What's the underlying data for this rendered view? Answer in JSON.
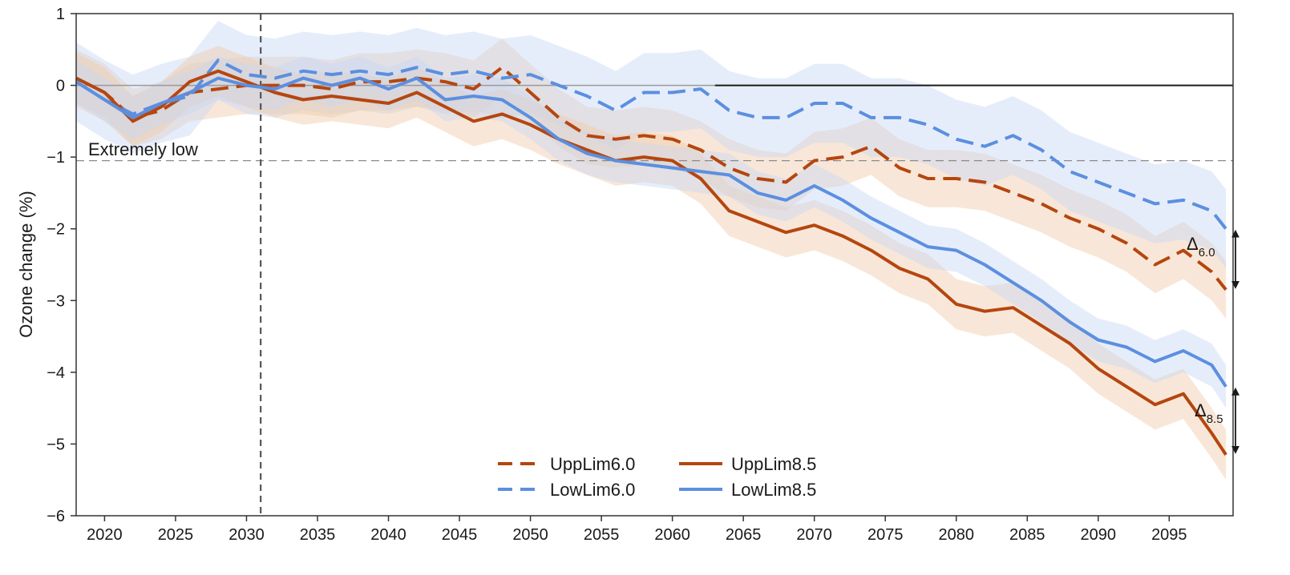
{
  "chart_data": {
    "type": "line",
    "title": "",
    "xlabel": "",
    "ylabel": "Ozone change (%)",
    "xlim": [
      2018,
      2099.5
    ],
    "ylim": [
      -6,
      1
    ],
    "xticks": [
      2020,
      2025,
      2030,
      2035,
      2040,
      2045,
      2050,
      2055,
      2060,
      2065,
      2070,
      2075,
      2080,
      2085,
      2090,
      2095
    ],
    "yticks": [
      1,
      0,
      -1,
      -2,
      -3,
      -4,
      -5,
      -6
    ],
    "xtick_labels": [
      "2020",
      "2025",
      "2030",
      "2035",
      "2040",
      "2045",
      "2050",
      "2055",
      "2060",
      "2065",
      "2070",
      "2075",
      "2080",
      "2085",
      "2090",
      "2095"
    ],
    "ytick_labels": [
      "1",
      "0",
      "−1",
      "−2",
      "−3",
      "−4",
      "−5",
      "−6"
    ],
    "reference_lines": {
      "vertical_x": 2031,
      "extremely_low_y": -1.05,
      "zero_y": 0
    },
    "annotations": {
      "extremely_low": "Extremely low",
      "delta_60_base": "Δ",
      "delta_60_sub": "6.0",
      "delta_85_base": "Δ",
      "delta_85_sub": "8.5"
    },
    "legend_position": "bottom-center",
    "series": [
      {
        "name": "UppLim6.0",
        "color": "#b5460f",
        "band_color": "#f0c9a8",
        "style": "dashed",
        "x": [
          2018,
          2020,
          2022,
          2024,
          2026,
          2028,
          2030,
          2032,
          2034,
          2036,
          2038,
          2040,
          2042,
          2044,
          2046,
          2048,
          2050,
          2052,
          2054,
          2056,
          2058,
          2060,
          2062,
          2064,
          2066,
          2068,
          2070,
          2072,
          2074,
          2076,
          2078,
          2080,
          2082,
          2084,
          2086,
          2088,
          2090,
          2092,
          2094,
          2096,
          2098,
          2099
        ],
        "values": [
          0.1,
          -0.1,
          -0.45,
          -0.35,
          -0.1,
          -0.05,
          0.0,
          0.0,
          0.0,
          -0.05,
          0.05,
          0.05,
          0.1,
          0.05,
          -0.05,
          0.25,
          -0.1,
          -0.45,
          -0.7,
          -0.75,
          -0.7,
          -0.75,
          -0.9,
          -1.15,
          -1.3,
          -1.35,
          -1.05,
          -1.0,
          -0.85,
          -1.15,
          -1.3,
          -1.3,
          -1.35,
          -1.5,
          -1.65,
          -1.85,
          -2.0,
          -2.2,
          -2.5,
          -2.3,
          -2.6,
          -2.85
        ],
        "band_half_width": 0.4
      },
      {
        "name": "LowLim6.0",
        "color": "#5b8fe0",
        "band_color": "#c8d8f5",
        "style": "dashed",
        "x": [
          2018,
          2020,
          2022,
          2024,
          2026,
          2028,
          2030,
          2032,
          2034,
          2036,
          2038,
          2040,
          2042,
          2044,
          2046,
          2048,
          2050,
          2052,
          2054,
          2056,
          2058,
          2060,
          2062,
          2064,
          2066,
          2068,
          2070,
          2072,
          2074,
          2076,
          2078,
          2080,
          2082,
          2084,
          2086,
          2088,
          2090,
          2092,
          2094,
          2096,
          2098,
          2099
        ],
        "values": [
          0.05,
          -0.2,
          -0.4,
          -0.25,
          -0.15,
          0.35,
          0.15,
          0.1,
          0.2,
          0.15,
          0.2,
          0.15,
          0.25,
          0.15,
          0.2,
          0.1,
          0.15,
          0.0,
          -0.15,
          -0.35,
          -0.1,
          -0.1,
          -0.05,
          -0.35,
          -0.45,
          -0.45,
          -0.25,
          -0.25,
          -0.45,
          -0.45,
          -0.55,
          -0.75,
          -0.85,
          -0.7,
          -0.9,
          -1.2,
          -1.35,
          -1.5,
          -1.65,
          -1.6,
          -1.75,
          -2.0
        ],
        "band_half_width": 0.55
      },
      {
        "name": "UppLim8.5",
        "color": "#b5460f",
        "band_color": "#f0c9a8",
        "style": "solid",
        "x": [
          2018,
          2020,
          2022,
          2024,
          2026,
          2028,
          2030,
          2032,
          2034,
          2036,
          2038,
          2040,
          2042,
          2044,
          2046,
          2048,
          2050,
          2052,
          2054,
          2056,
          2058,
          2060,
          2062,
          2064,
          2066,
          2068,
          2070,
          2072,
          2074,
          2076,
          2078,
          2080,
          2082,
          2084,
          2086,
          2088,
          2090,
          2092,
          2094,
          2096,
          2098,
          2099
        ],
        "values": [
          0.1,
          -0.1,
          -0.5,
          -0.3,
          0.05,
          0.2,
          0.05,
          -0.1,
          -0.2,
          -0.15,
          -0.2,
          -0.25,
          -0.1,
          -0.3,
          -0.5,
          -0.4,
          -0.55,
          -0.75,
          -0.9,
          -1.05,
          -1.0,
          -1.05,
          -1.3,
          -1.75,
          -1.9,
          -2.05,
          -1.95,
          -2.1,
          -2.3,
          -2.55,
          -2.7,
          -3.05,
          -3.15,
          -3.1,
          -3.35,
          -3.6,
          -3.95,
          -4.2,
          -4.45,
          -4.3,
          -4.85,
          -5.15
        ],
        "band_half_width": 0.35
      },
      {
        "name": "LowLim8.5",
        "color": "#5b8fe0",
        "band_color": "#c8d8f5",
        "style": "solid",
        "x": [
          2018,
          2020,
          2022,
          2024,
          2026,
          2028,
          2030,
          2032,
          2034,
          2036,
          2038,
          2040,
          2042,
          2044,
          2046,
          2048,
          2050,
          2052,
          2054,
          2056,
          2058,
          2060,
          2062,
          2064,
          2066,
          2068,
          2070,
          2072,
          2074,
          2076,
          2078,
          2080,
          2082,
          2084,
          2086,
          2088,
          2090,
          2092,
          2094,
          2096,
          2098,
          2099
        ],
        "values": [
          0.05,
          -0.2,
          -0.45,
          -0.25,
          -0.1,
          0.1,
          0.0,
          -0.05,
          0.1,
          0.0,
          0.1,
          -0.05,
          0.1,
          -0.2,
          -0.15,
          -0.2,
          -0.45,
          -0.75,
          -0.95,
          -1.05,
          -1.1,
          -1.15,
          -1.2,
          -1.25,
          -1.5,
          -1.6,
          -1.4,
          -1.6,
          -1.85,
          -2.05,
          -2.25,
          -2.3,
          -2.5,
          -2.75,
          -3.0,
          -3.3,
          -3.55,
          -3.65,
          -3.85,
          -3.7,
          -3.9,
          -4.2
        ],
        "band_half_width": 0.3
      }
    ]
  }
}
